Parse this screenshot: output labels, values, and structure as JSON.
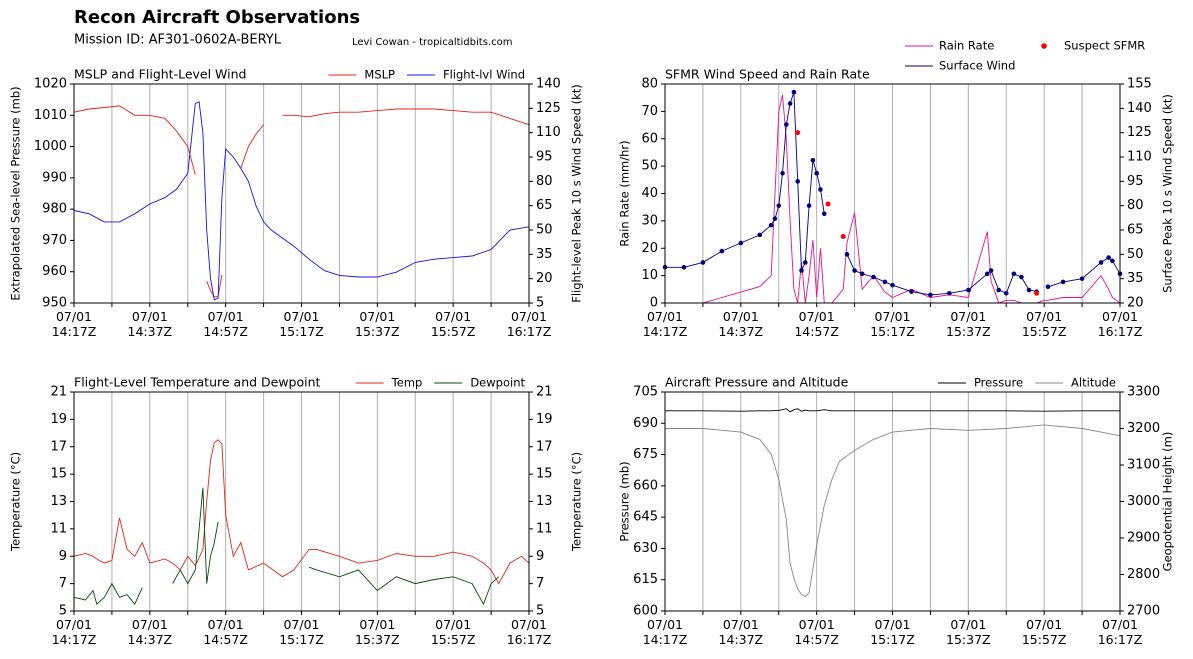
{
  "header": {
    "title": "Recon Aircraft Observations",
    "mission": "Mission ID: AF301-0602A-BERYL",
    "credit": "Levi Cowan - tropicaltidbits.com"
  },
  "chart_data": [
    {
      "type": "line",
      "title": "MSLP and Flight-Level Wind",
      "ylabel": "Extrapolated Sea-level Pressure (mb)",
      "y2label": "Flight-level Peak 10 s Wind Speed (kt)",
      "legend": "upper right",
      "legend_ncol": 1,
      "xgrid": true,
      "xlim": [
        "07/01 14:17",
        "07/01 16:17"
      ],
      "xticks": [
        {
          "value": "07/01 14:17",
          "label": "07/01\n14:17Z"
        },
        {
          "value": "07/01 14:37",
          "label": "07/01\n14:37Z"
        },
        {
          "value": "07/01 14:57",
          "label": "07/01\n14:57Z"
        },
        {
          "value": "07/01 15:17",
          "label": "07/01\n15:17Z"
        },
        {
          "value": "07/01 15:37",
          "label": "07/01\n15:37Z"
        },
        {
          "value": "07/01 15:57",
          "label": "07/01\n15:57Z"
        },
        {
          "value": "07/01 16:17",
          "label": "07/01\n16:17Z"
        }
      ],
      "xminorticks": [
        "07/01 14:27",
        "07/01 14:47",
        "07/01 15:07",
        "07/01 15:27",
        "07/01 15:47",
        "07/01 16:07"
      ],
      "ylim": [
        950,
        1020
      ],
      "yticks": [
        950,
        960,
        970,
        980,
        990,
        1000,
        1010,
        1020
      ],
      "y2lim": [
        5,
        140
      ],
      "y2ticks": [
        5,
        20,
        35,
        50,
        65,
        80,
        95,
        110,
        125,
        140
      ],
      "x": [
        "07/01 14:17",
        "07/01 14:21",
        "07/01 14:25",
        "07/01 14:29",
        "07/01 14:33",
        "07/01 14:37",
        "07/01 14:41",
        "07/01 14:44",
        "07/01 14:47",
        "07/01 14:49",
        "07/01 14:50",
        "07/01 14:51",
        "07/01 14:52",
        "07/01 14:53",
        "07/01 14:54",
        "07/01 14:55",
        "07/01 14:56",
        "07/01 14:57",
        "07/01 14:59",
        "07/01 15:01",
        "07/01 15:03",
        "07/01 15:05",
        "07/01 15:07",
        "07/01 15:09",
        "07/01 15:12",
        "07/01 15:15",
        "07/01 15:19",
        "07/01 15:23",
        "07/01 15:27",
        "07/01 15:32",
        "07/01 15:37",
        "07/01 15:42",
        "07/01 15:47",
        "07/01 15:52",
        "07/01 15:57",
        "07/01 16:02",
        "07/01 16:07",
        "07/01 16:12",
        "07/01 16:17"
      ],
      "series": [
        {
          "name": "MSLP",
          "color": "#e8201a",
          "values": [
            1011,
            1012,
            1012.5,
            1013,
            1010,
            1010,
            1009,
            1005,
            1000,
            991,
            null,
            null,
            957,
            954,
            952,
            952,
            959,
            null,
            null,
            993,
            1000,
            1004,
            1007,
            null,
            1010,
            1010,
            1009.5,
            1010.5,
            1011,
            1011,
            1011.5,
            1012,
            1012,
            1012,
            1011.5,
            1011,
            1011,
            1009,
            1007
          ]
        },
        {
          "name": "Flight-lvl Wind",
          "color": "#1414e0",
          "axis": "y2",
          "values": [
            62,
            60,
            55,
            55,
            60,
            66,
            70,
            75,
            85,
            128,
            129,
            110,
            50,
            20,
            7,
            8,
            70,
            100,
            95,
            88,
            80,
            65,
            55,
            50,
            45,
            40,
            32,
            25,
            22,
            21,
            21,
            24,
            30,
            32,
            33,
            34,
            38,
            50,
            52
          ]
        }
      ]
    },
    {
      "type": "line",
      "title": "SFMR Wind Speed and Rain Rate",
      "ylabel": "Rain Rate (mm/hr)",
      "y2label": "Surface Peak 10 s Wind Speed (kt)",
      "legend": "upper right",
      "legend_ncol": 2,
      "xgrid": true,
      "xlim": [
        "07/01 14:17",
        "07/01 16:17"
      ],
      "xticks": [
        {
          "value": "07/01 14:17",
          "label": "07/01\n14:17Z"
        },
        {
          "value": "07/01 14:37",
          "label": "07/01\n14:37Z"
        },
        {
          "value": "07/01 14:57",
          "label": "07/01\n14:57Z"
        },
        {
          "value": "07/01 15:17",
          "label": "07/01\n15:17Z"
        },
        {
          "value": "07/01 15:37",
          "label": "07/01\n15:37Z"
        },
        {
          "value": "07/01 15:57",
          "label": "07/01\n15:57Z"
        },
        {
          "value": "07/01 16:17",
          "label": "07/01\n16:17Z"
        }
      ],
      "xminorticks": [
        "07/01 14:27",
        "07/01 14:47",
        "07/01 15:07",
        "07/01 15:27",
        "07/01 15:47",
        "07/01 16:07"
      ],
      "ylim": [
        0,
        80
      ],
      "yticks": [
        0,
        10,
        20,
        30,
        40,
        50,
        60,
        70,
        80
      ],
      "y2lim": [
        20,
        155
      ],
      "y2ticks": [
        20,
        35,
        50,
        65,
        80,
        95,
        110,
        125,
        140,
        155
      ],
      "x": [
        "07/01 14:17",
        "07/01 14:22",
        "07/01 14:27",
        "07/01 14:32",
        "07/01 14:37",
        "07/01 14:42",
        "07/01 14:45",
        "07/01 14:46",
        "07/01 14:47",
        "07/01 14:48",
        "07/01 14:49",
        "07/01 14:50",
        "07/01 14:51",
        "07/01 14:52",
        "07/01 14:53",
        "07/01 14:54",
        "07/01 14:55",
        "07/01 14:56",
        "07/01 14:57",
        "07/01 14:58",
        "07/01 14:59",
        "07/01 15:00",
        "07/01 15:01",
        "07/01 15:04",
        "07/01 15:05",
        "07/01 15:07",
        "07/01 15:09",
        "07/01 15:12",
        "07/01 15:15",
        "07/01 15:17",
        "07/01 15:22",
        "07/01 15:27",
        "07/01 15:32",
        "07/01 15:37",
        "07/01 15:42",
        "07/01 15:43",
        "07/01 15:45",
        "07/01 15:47",
        "07/01 15:49",
        "07/01 15:51",
        "07/01 15:53",
        "07/01 15:55",
        "07/01 15:57",
        "07/01 15:58",
        "07/01 16:02",
        "07/01 16:07",
        "07/01 16:12",
        "07/01 16:14",
        "07/01 16:15",
        "07/01 16:17"
      ],
      "series": [
        {
          "name": "Rain Rate",
          "color": "#e8108c",
          "values": [
            0,
            0,
            0,
            2,
            4,
            6,
            10,
            40,
            70,
            76,
            60,
            30,
            5,
            0,
            15,
            0,
            10,
            23,
            2,
            20,
            0,
            0,
            0,
            5,
            22,
            33,
            5,
            10,
            4,
            2,
            5,
            2,
            3,
            2,
            26,
            8,
            0,
            1,
            1,
            0,
            0,
            0,
            1,
            1,
            2,
            2,
            10,
            5,
            2,
            0
          ]
        },
        {
          "name": "Surface Wind",
          "color": "#000080",
          "axis": "y2",
          "markers": true,
          "values": [
            42,
            42,
            45,
            52,
            57,
            62,
            68,
            72,
            80,
            100,
            130,
            143,
            150,
            95,
            40,
            45,
            80,
            108,
            100,
            90,
            75,
            null,
            null,
            null,
            50,
            40,
            38,
            36,
            33,
            31,
            27,
            25,
            26,
            28,
            38,
            40,
            28,
            26,
            38,
            36,
            28,
            27,
            null,
            30,
            33,
            35,
            45,
            48,
            46,
            38
          ]
        },
        {
          "name": "Suspect SFMR",
          "type": "scatter",
          "color": "#ff0000",
          "axis": "y2",
          "x": [
            "07/01 14:52",
            "07/01 15:00",
            "07/01 15:04",
            "07/01 15:55"
          ],
          "values": [
            125,
            81,
            61,
            26
          ]
        }
      ]
    },
    {
      "type": "line",
      "title": "Flight-Level Temperature and Dewpoint",
      "ylabel": "Temperature (°C)",
      "y2label": "Temperature (°C)",
      "legend": "upper right",
      "legend_ncol": 1,
      "xgrid": true,
      "xlim": [
        "07/01 14:17",
        "07/01 16:17"
      ],
      "xticks": [
        {
          "value": "07/01 14:17",
          "label": "07/01\n14:17Z"
        },
        {
          "value": "07/01 14:37",
          "label": "07/01\n14:37Z"
        },
        {
          "value": "07/01 14:57",
          "label": "07/01\n14:57Z"
        },
        {
          "value": "07/01 15:17",
          "label": "07/01\n15:17Z"
        },
        {
          "value": "07/01 15:37",
          "label": "07/01\n15:37Z"
        },
        {
          "value": "07/01 15:57",
          "label": "07/01\n15:57Z"
        },
        {
          "value": "07/01 16:17",
          "label": "07/01\n16:17Z"
        }
      ],
      "xminorticks": [
        "07/01 14:27",
        "07/01 14:47",
        "07/01 15:07",
        "07/01 15:27",
        "07/01 15:47",
        "07/01 16:07"
      ],
      "ylim": [
        5,
        21
      ],
      "yticks": [
        5,
        7,
        9,
        11,
        13,
        15,
        17,
        19,
        21
      ],
      "y2lim": [
        5,
        21
      ],
      "y2ticks": [
        5,
        7,
        9,
        11,
        13,
        15,
        17,
        19,
        21
      ],
      "x": [
        "07/01 14:17",
        "07/01 14:20",
        "07/01 14:22",
        "07/01 14:23",
        "07/01 14:25",
        "07/01 14:27",
        "07/01 14:29",
        "07/01 14:31",
        "07/01 14:33",
        "07/01 14:35",
        "07/01 14:37",
        "07/01 14:41",
        "07/01 14:43",
        "07/01 14:45",
        "07/01 14:47",
        "07/01 14:49",
        "07/01 14:51",
        "07/01 14:52",
        "07/01 14:53",
        "07/01 14:54",
        "07/01 14:55",
        "07/01 14:56",
        "07/01 14:57",
        "07/01 14:59",
        "07/01 15:01",
        "07/01 15:03",
        "07/01 15:07",
        "07/01 15:12",
        "07/01 15:15",
        "07/01 15:19",
        "07/01 15:21",
        "07/01 15:27",
        "07/01 15:32",
        "07/01 15:37",
        "07/01 15:42",
        "07/01 15:47",
        "07/01 15:52",
        "07/01 15:57",
        "07/01 16:02",
        "07/01 16:05",
        "07/01 16:07",
        "07/01 16:09",
        "07/01 16:12",
        "07/01 16:15",
        "07/01 16:17"
      ],
      "series": [
        {
          "name": "Temp",
          "color": "#e02818",
          "values": [
            9,
            9.2,
            9,
            8.8,
            8.5,
            8.7,
            11.8,
            9.5,
            9,
            10,
            8.5,
            8.8,
            8.5,
            8,
            9,
            8.3,
            9.5,
            13,
            16,
            17.3,
            17.5,
            17.2,
            12,
            9,
            10,
            8,
            8.5,
            7.5,
            8,
            9.5,
            9.5,
            9,
            8.5,
            8.7,
            9.2,
            9,
            9,
            9.3,
            9,
            8.5,
            8,
            7,
            8.5,
            9,
            8.5
          ]
        },
        {
          "name": "Dewpoint",
          "color": "#0a4a0a",
          "values": [
            6,
            5.8,
            6.5,
            5.5,
            6,
            7,
            6,
            6.2,
            5.5,
            6.7,
            null,
            null,
            7,
            8,
            7,
            8,
            14,
            7,
            9,
            10,
            11.5,
            null,
            null,
            null,
            null,
            null,
            null,
            null,
            null,
            8.2,
            8,
            7.5,
            8,
            6.5,
            7.5,
            7,
            7.3,
            7.5,
            7,
            5.5,
            7,
            7.5,
            null,
            null,
            null
          ]
        }
      ]
    },
    {
      "type": "line",
      "title": "Aircraft Pressure and Altitude",
      "ylabel": "Pressure (mb)",
      "y2label": "Geopotential Height (m)",
      "legend": "upper right",
      "legend_ncol": 1,
      "xgrid": true,
      "xlim": [
        "07/01 14:17",
        "07/01 16:17"
      ],
      "xticks": [
        {
          "value": "07/01 14:17",
          "label": "07/01\n14:17Z"
        },
        {
          "value": "07/01 14:37",
          "label": "07/01\n14:37Z"
        },
        {
          "value": "07/01 14:57",
          "label": "07/01\n14:57Z"
        },
        {
          "value": "07/01 15:17",
          "label": "07/01\n15:17Z"
        },
        {
          "value": "07/01 15:37",
          "label": "07/01\n15:37Z"
        },
        {
          "value": "07/01 15:57",
          "label": "07/01\n15:57Z"
        },
        {
          "value": "07/01 16:17",
          "label": "07/01\n16:17Z"
        }
      ],
      "xminorticks": [
        "07/01 14:27",
        "07/01 14:47",
        "07/01 15:07",
        "07/01 15:27",
        "07/01 15:47",
        "07/01 16:07"
      ],
      "ylim": [
        600,
        705
      ],
      "yticks": [
        600,
        615,
        630,
        645,
        660,
        675,
        690,
        705
      ],
      "y2lim": [
        2700,
        3300
      ],
      "y2ticks": [
        2700,
        2800,
        2900,
        3000,
        3100,
        3200,
        3300
      ],
      "x": [
        "07/01 14:17",
        "07/01 14:27",
        "07/01 14:37",
        "07/01 14:42",
        "07/01 14:45",
        "07/01 14:47",
        "07/01 14:49",
        "07/01 14:50",
        "07/01 14:51",
        "07/01 14:52",
        "07/01 14:53",
        "07/01 14:54",
        "07/01 14:55",
        "07/01 14:57",
        "07/01 14:59",
        "07/01 15:01",
        "07/01 15:03",
        "07/01 15:07",
        "07/01 15:12",
        "07/01 15:17",
        "07/01 15:27",
        "07/01 15:37",
        "07/01 15:47",
        "07/01 15:57",
        "07/01 16:07",
        "07/01 16:12",
        "07/01 16:17"
      ],
      "series": [
        {
          "name": "Pressure",
          "color": "#000000",
          "values": [
            696,
            696,
            695.8,
            696,
            696,
            696.2,
            697,
            695.5,
            696.5,
            697,
            695.8,
            696.3,
            696,
            696,
            696.5,
            696,
            696,
            696,
            696,
            696,
            696,
            696,
            696,
            695.8,
            696,
            696,
            696
          ]
        },
        {
          "name": "Altitude",
          "color": "#888888",
          "axis": "y2",
          "values": [
            3200,
            3200,
            3190,
            3170,
            3130,
            3060,
            2950,
            2830,
            2790,
            2760,
            2745,
            2740,
            2750,
            2880,
            2990,
            3060,
            3110,
            3140,
            3170,
            3190,
            3200,
            3195,
            3200,
            3210,
            3200,
            3190,
            3180
          ]
        }
      ]
    }
  ]
}
